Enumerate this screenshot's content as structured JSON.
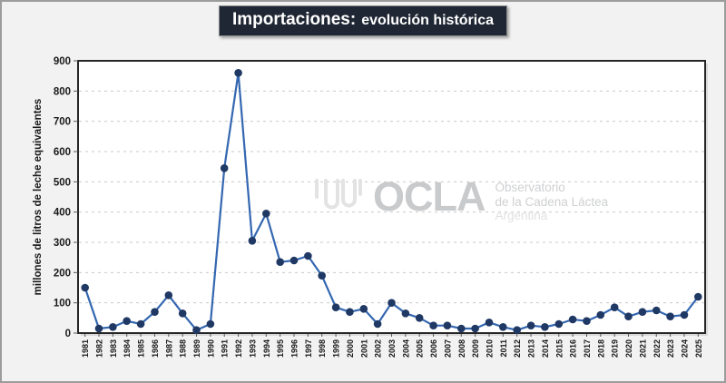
{
  "title": {
    "primary": "Importaciones:",
    "secondary": "evolución histórica"
  },
  "watermark": {
    "brand": "OCLA",
    "lines": [
      "Observatorio",
      "de la Cadena Láctea",
      "Argentina"
    ]
  },
  "chart_data": {
    "type": "line",
    "title": "Importaciones: evolución histórica",
    "xlabel": "",
    "ylabel": "millones de litros de leche equivalentes",
    "ylim": [
      0,
      900
    ],
    "ytick_interval": 100,
    "grid": "horizontal-dashed",
    "legend": "none",
    "categories": [
      "1981",
      "1982",
      "1983",
      "1984",
      "1985",
      "1986",
      "1987",
      "1988",
      "1989",
      "1990",
      "1991",
      "1992",
      "1993",
      "1994",
      "1995",
      "1996",
      "1997",
      "1998",
      "1999",
      "2000",
      "2001",
      "2002",
      "2003",
      "2004",
      "2005",
      "2006",
      "2007",
      "2008",
      "2009",
      "2010",
      "2011",
      "2012",
      "2013",
      "2014",
      "2015",
      "2016",
      "2017",
      "2018",
      "2019",
      "2020",
      "2021",
      "2022",
      "2023",
      "2024",
      "2025"
    ],
    "values": [
      150,
      15,
      20,
      40,
      30,
      70,
      125,
      65,
      10,
      30,
      545,
      860,
      305,
      395,
      235,
      240,
      255,
      190,
      85,
      70,
      80,
      30,
      100,
      65,
      50,
      25,
      25,
      15,
      15,
      35,
      20,
      10,
      25,
      20,
      30,
      45,
      40,
      60,
      85,
      55,
      70,
      75,
      55,
      60,
      120
    ],
    "colors": {
      "line": "#3467B1",
      "marker": "#1F3864",
      "gridline": "#C9C9C9",
      "plot_border": "#262626",
      "plot_background": "#FFFFFF",
      "page_background": "#F2F2F2",
      "title_background": "#202734"
    }
  }
}
